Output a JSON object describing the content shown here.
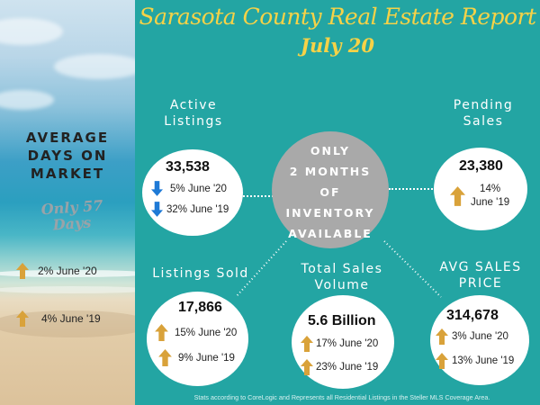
{
  "title": "Sarasota County Real Estate Report",
  "subtitle": "July 20",
  "left_panel": {
    "heading_line1": "AVERAGE",
    "heading_line2": "DAYS ON",
    "heading_line3": "MARKET",
    "highlight_line1": "Only 57",
    "highlight_line2": "Days",
    "stats": [
      {
        "direction": "up",
        "text": "2%  June '20"
      },
      {
        "direction": "up",
        "text": "4% June '19"
      }
    ]
  },
  "active_listings": {
    "label_line1": "Active",
    "label_line2": "Listings",
    "value": "33,538",
    "stats": [
      {
        "direction": "down",
        "text": "5% June '20"
      },
      {
        "direction": "down",
        "text": "32% June '19"
      }
    ]
  },
  "pending_sales": {
    "label_line1": "Pending",
    "label_line2": "Sales",
    "value": "23,380",
    "stats": [
      {
        "direction": "up",
        "text_line1": "14%",
        "text_line2": "June '19"
      }
    ]
  },
  "inventory": {
    "lines": [
      "ONLY",
      "2 MONTHS",
      "OF",
      "INVENTORY",
      "AVAILABLE"
    ]
  },
  "listings_sold": {
    "label": "Listings Sold",
    "value": "17,866",
    "stats": [
      {
        "direction": "up",
        "text": "15% June '20"
      },
      {
        "direction": "up",
        "text": "9% June '19"
      }
    ]
  },
  "total_sales_volume": {
    "label_line1": "Total Sales",
    "label_line2": "Volume",
    "value": "5.6 Billion",
    "stats": [
      {
        "direction": "up",
        "text": "17% June '20"
      },
      {
        "direction": "up",
        "text": "23% June '19"
      }
    ]
  },
  "avg_sales_price": {
    "label_line1": "AVG SALES",
    "label_line2": "PRICE",
    "value": "314,678",
    "stats": [
      {
        "direction": "up",
        "text": "3% June '20"
      },
      {
        "direction": "up",
        "text": "13% June '19"
      }
    ]
  },
  "footnote": "Stats according to CoreLogic and Represents all Residential Listings in the Steller MLS Coverage Area.",
  "colors": {
    "background": "#23a5a3",
    "title": "#f6d247",
    "up_arrow": "#d9a23a",
    "down_arrow": "#1e7ad6",
    "center_circle": "#a9a9a9"
  }
}
